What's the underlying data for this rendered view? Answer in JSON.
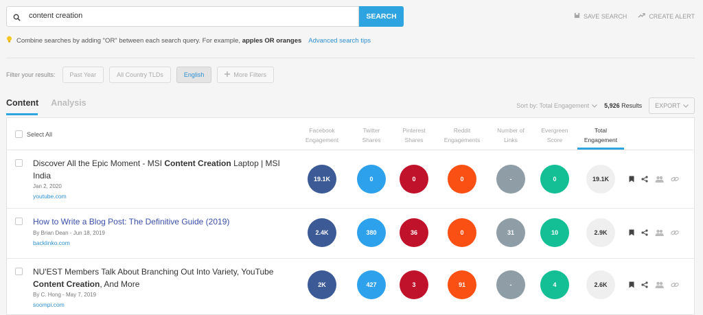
{
  "search": {
    "query": "content creation",
    "button_label": "SEARCH"
  },
  "top_actions": {
    "save_search": "SAVE SEARCH",
    "create_alert": "CREATE ALERT"
  },
  "tip": {
    "prefix": "Combine searches by adding \"OR\" between each search query. For example,",
    "example": "apples OR oranges",
    "link": "Advanced search tips"
  },
  "filters": {
    "label": "Filter your results:",
    "past_year": "Past Year",
    "country": "All Country TLDs",
    "language": "English",
    "more": "More Filters"
  },
  "tabs": {
    "content": "Content",
    "analysis": "Analysis"
  },
  "sort": {
    "label": "Sort by: Total Engagement",
    "count": "5,926",
    "results_label": "Results",
    "export": "EXPORT"
  },
  "table": {
    "select_all": "Select All",
    "columns": {
      "facebook": [
        "Facebook",
        "Engagement"
      ],
      "twitter": [
        "Twitter",
        "Shares"
      ],
      "pinterest": [
        "Pinterest",
        "Shares"
      ],
      "reddit": [
        "Reddit",
        "Engagements"
      ],
      "links": [
        "Number of",
        "Links"
      ],
      "evergreen": [
        "Evergreen",
        "Score"
      ],
      "total": [
        "Total",
        "Engagement"
      ]
    },
    "rows": [
      {
        "title_a": "Discover All the Epic Moment - MSI ",
        "title_b": "Content Creation",
        "title_c": " Laptop | MSI India",
        "meta": "Jan 2, 2020",
        "url": "youtube.com",
        "facebook": "19.1K",
        "twitter": "0",
        "pinterest": "0",
        "reddit": "0",
        "links": "-",
        "evergreen": "0",
        "total": "19.1K"
      },
      {
        "title_a": "How to Write a Blog Post: The Definitive Guide (2019)",
        "meta": "By Brian Dean - Jun 18, 2019",
        "url": "backlinko.com",
        "facebook": "2.4K",
        "twitter": "380",
        "pinterest": "36",
        "reddit": "0",
        "links": "31",
        "evergreen": "10",
        "total": "2.9K"
      },
      {
        "title_a": "NU'EST Members Talk About Branching Out Into Variety, YouTube ",
        "title_b": "Content Creation",
        "title_c": ", And More",
        "meta": "By C. Hong - May 7, 2019",
        "url": "soompi.com",
        "facebook": "2K",
        "twitter": "427",
        "pinterest": "3",
        "reddit": "91",
        "links": "-",
        "evergreen": "4",
        "total": "2.6K"
      }
    ]
  },
  "colors": {
    "accent": "#2da4df",
    "facebook": "#3b5a96",
    "twitter": "#2ea1ec",
    "pinterest": "#c0122b",
    "reddit": "#fb5014",
    "links": "#8f9da6",
    "evergreen": "#14bf95"
  },
  "icons": {
    "search": "search-icon",
    "save": "save-icon",
    "alert": "trend-icon",
    "tip": "lightbulb-icon",
    "plus": "plus-icon",
    "chevron": "chevron-down-icon",
    "bookmark": "bookmark-icon",
    "share": "share-icon",
    "people": "people-icon",
    "link": "link-icon"
  }
}
